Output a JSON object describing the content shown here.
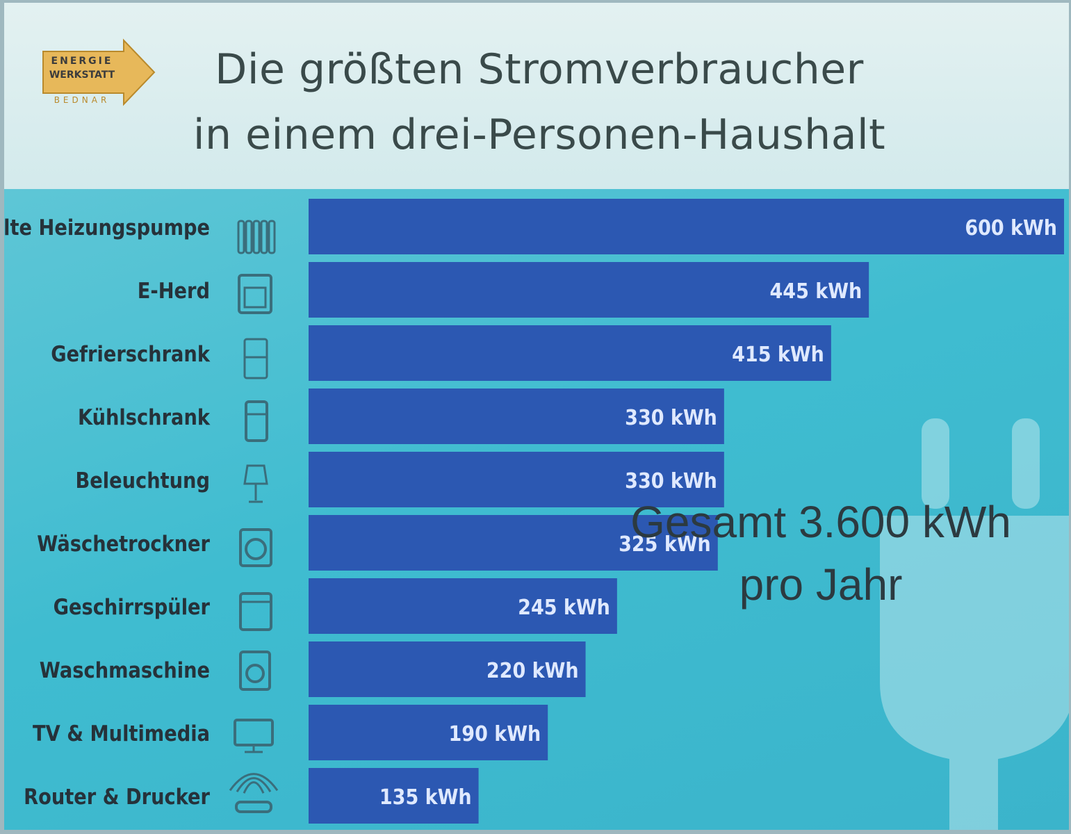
{
  "logo": {
    "line1": "ENERGIE",
    "line2": "WERKSTATT",
    "line3": "BEDNAR"
  },
  "title": {
    "line1": "Die größten Stromverbraucher",
    "line2": "in einem drei-Personen-Haushalt"
  },
  "total": {
    "line1": "Gesamt 3.600 kWh",
    "line2": "pro Jahr"
  },
  "colors": {
    "bar": "#2c58b2",
    "bar_label": "#dfe9ff",
    "category_label": "#26323a",
    "icon": "#3a6e7c"
  },
  "chart_data": {
    "type": "bar",
    "orientation": "horizontal",
    "categories": [
      "Alte Heizungspumpe",
      "E-Herd",
      "Gefrierschrank",
      "Kühlschrank",
      "Beleuchtung",
      "Wäschetrockner",
      "Geschirrspüler",
      "Waschmaschine",
      "TV & Multimedia",
      "Router & Drucker"
    ],
    "icons": [
      "radiator-icon",
      "stove-icon",
      "freezer-icon",
      "fridge-icon",
      "lamp-icon",
      "dryer-icon",
      "dishwasher-icon",
      "washing-machine-icon",
      "tv-icon",
      "router-icon"
    ],
    "values": [
      600,
      445,
      415,
      330,
      330,
      325,
      245,
      220,
      190,
      135
    ],
    "value_labels": [
      "600 kWh",
      "445 kWh",
      "415 kWh",
      "330 kWh",
      "330 kWh",
      "325 kWh",
      "245 kWh",
      "220 kWh",
      "190 kWh",
      "135 kWh"
    ],
    "unit": "kWh",
    "xlim": [
      0,
      600
    ],
    "grid": false,
    "legend": "none"
  }
}
